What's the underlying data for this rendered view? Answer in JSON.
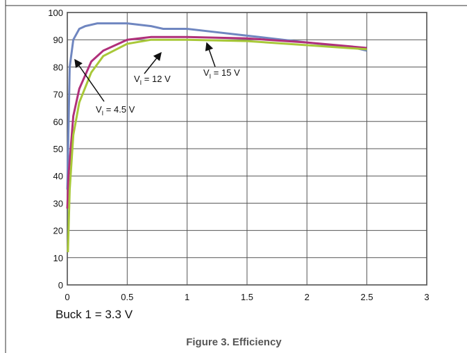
{
  "chart_data": {
    "type": "line",
    "caption": "Buck 1 = 3.3 V",
    "figure_title": "Figure 3. Efficiency",
    "xlim": [
      0,
      3
    ],
    "xticks": [
      0,
      0.5,
      1,
      1.5,
      2,
      2.5,
      3
    ],
    "ylim": [
      0,
      100
    ],
    "yticks": [
      0,
      10,
      20,
      30,
      40,
      50,
      60,
      70,
      80,
      90,
      100
    ],
    "grid": true,
    "series": [
      {
        "color": "#6f86c0",
        "x": [
          0,
          0.02,
          0.05,
          0.1,
          0.15,
          0.25,
          0.5,
          0.7,
          0.8,
          1.0,
          1.2,
          1.4,
          1.6,
          1.8,
          2.0,
          2.2,
          2.4,
          2.5
        ],
        "values": [
          35,
          80,
          90,
          94,
          95,
          96,
          96,
          95,
          94,
          94,
          93,
          92,
          91,
          90,
          89,
          88,
          87,
          86
        ]
      },
      {
        "color": "#b0307a",
        "x": [
          0,
          0.01,
          0.05,
          0.1,
          0.2,
          0.3,
          0.5,
          0.7,
          1.0,
          1.5,
          2.0,
          2.5
        ],
        "values": [
          28,
          40,
          62,
          72,
          82,
          86,
          90,
          91,
          91,
          90.5,
          89,
          87
        ]
      },
      {
        "color": "#a8c838",
        "x": [
          0.005,
          0.02,
          0.05,
          0.1,
          0.2,
          0.3,
          0.5,
          0.7,
          1.0,
          1.5,
          2.0,
          2.5
        ],
        "values": [
          12,
          35,
          55,
          67,
          78,
          84,
          88.5,
          90,
          90,
          89.5,
          88,
          86.5
        ]
      }
    ],
    "annotations": [
      {
        "prefix": "V",
        "subscript": "I",
        "suffix": " = 4.5 V"
      },
      {
        "prefix": "V",
        "subscript": "I",
        "suffix": " = 12 V"
      },
      {
        "prefix": "V",
        "subscript": "I",
        "suffix": " = 15 V"
      }
    ]
  }
}
